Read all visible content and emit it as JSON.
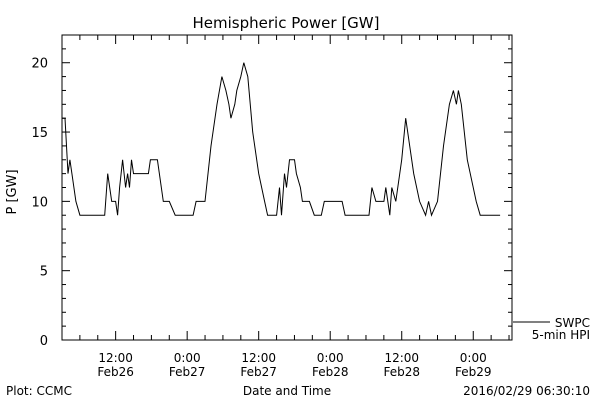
{
  "chart_data": {
    "type": "line",
    "title": "Hemispheric Power [GW]",
    "xlabel": "Date and Time",
    "ylabel": "P [GW]",
    "ylim": [
      0,
      22
    ],
    "yticks": [
      0,
      5,
      10,
      15,
      20
    ],
    "xlim": [
      "2016-02-26 03:00",
      "2016-02-29 06:30"
    ],
    "xticks": [
      {
        "t": "2016-02-26 12:00",
        "line1": "12:00",
        "line2": "Feb26"
      },
      {
        "t": "2016-02-27 00:00",
        "line1": "0:00",
        "line2": "Feb27"
      },
      {
        "t": "2016-02-27 12:00",
        "line1": "12:00",
        "line2": "Feb27"
      },
      {
        "t": "2016-02-28 00:00",
        "line1": "0:00",
        "line2": "Feb28"
      },
      {
        "t": "2016-02-28 12:00",
        "line1": "12:00",
        "line2": "Feb28"
      },
      {
        "t": "2016-02-29 00:00",
        "line1": "0:00",
        "line2": "Feb29"
      }
    ],
    "grid": false,
    "legend_position": "bottom-right",
    "legend": [
      "SWPC",
      "5-min HPI"
    ],
    "series": [
      {
        "name": "SWPC",
        "color": "#000000",
        "points": [
          [
            "2016-02-26 03:00",
            16
          ],
          [
            "2016-02-26 03:30",
            16
          ],
          [
            "2016-02-26 04:00",
            12
          ],
          [
            "2016-02-26 04:20",
            13
          ],
          [
            "2016-02-26 04:40",
            12
          ],
          [
            "2016-02-26 05:20",
            10
          ],
          [
            "2016-02-26 06:00",
            9
          ],
          [
            "2016-02-26 08:30",
            9
          ],
          [
            "2016-02-26 10:10",
            9
          ],
          [
            "2016-02-26 10:40",
            12
          ],
          [
            "2016-02-26 11:00",
            11
          ],
          [
            "2016-02-26 11:20",
            10
          ],
          [
            "2016-02-26 12:00",
            10
          ],
          [
            "2016-02-26 12:20",
            9
          ],
          [
            "2016-02-26 12:40",
            11
          ],
          [
            "2016-02-26 13:10",
            13
          ],
          [
            "2016-02-26 13:40",
            11
          ],
          [
            "2016-02-26 14:00",
            12
          ],
          [
            "2016-02-26 14:20",
            11
          ],
          [
            "2016-02-26 14:40",
            13
          ],
          [
            "2016-02-26 15:00",
            12
          ],
          [
            "2016-02-26 17:30",
            12
          ],
          [
            "2016-02-26 17:50",
            13
          ],
          [
            "2016-02-26 19:00",
            13
          ],
          [
            "2016-02-26 20:00",
            10
          ],
          [
            "2016-02-26 21:00",
            10
          ],
          [
            "2016-02-26 22:00",
            9
          ],
          [
            "2016-02-27 01:00",
            9
          ],
          [
            "2016-02-27 01:30",
            10
          ],
          [
            "2016-02-27 03:00",
            10
          ],
          [
            "2016-02-27 04:00",
            14
          ],
          [
            "2016-02-27 05:00",
            17
          ],
          [
            "2016-02-27 05:50",
            19
          ],
          [
            "2016-02-27 06:30",
            18
          ],
          [
            "2016-02-27 07:00",
            17
          ],
          [
            "2016-02-27 07:20",
            16
          ],
          [
            "2016-02-27 08:00",
            17
          ],
          [
            "2016-02-27 08:20",
            18
          ],
          [
            "2016-02-27 09:00",
            19
          ],
          [
            "2016-02-27 09:30",
            20
          ],
          [
            "2016-02-27 10:10",
            19
          ],
          [
            "2016-02-27 11:00",
            15
          ],
          [
            "2016-02-27 12:00",
            12
          ],
          [
            "2016-02-27 13:00",
            10
          ],
          [
            "2016-02-27 13:30",
            9
          ],
          [
            "2016-02-27 15:00",
            9
          ],
          [
            "2016-02-27 15:30",
            11
          ],
          [
            "2016-02-27 15:50",
            9
          ],
          [
            "2016-02-27 16:20",
            12
          ],
          [
            "2016-02-27 16:40",
            11
          ],
          [
            "2016-02-27 17:10",
            13
          ],
          [
            "2016-02-27 18:00",
            13
          ],
          [
            "2016-02-27 18:20",
            12
          ],
          [
            "2016-02-27 19:00",
            11
          ],
          [
            "2016-02-27 19:20",
            10
          ],
          [
            "2016-02-27 20:30",
            10
          ],
          [
            "2016-02-27 21:20",
            9
          ],
          [
            "2016-02-27 22:30",
            9
          ],
          [
            "2016-02-27 23:00",
            10
          ],
          [
            "2016-02-28 02:00",
            10
          ],
          [
            "2016-02-28 02:30",
            9
          ],
          [
            "2016-02-28 06:30",
            9
          ],
          [
            "2016-02-28 07:00",
            11
          ],
          [
            "2016-02-28 07:40",
            10
          ],
          [
            "2016-02-28 09:00",
            10
          ],
          [
            "2016-02-28 09:20",
            11
          ],
          [
            "2016-02-28 10:00",
            9
          ],
          [
            "2016-02-28 10:20",
            11
          ],
          [
            "2016-02-28 11:00",
            10
          ],
          [
            "2016-02-28 12:00",
            13
          ],
          [
            "2016-02-28 12:40",
            16
          ],
          [
            "2016-02-28 13:20",
            14
          ],
          [
            "2016-02-28 14:00",
            12
          ],
          [
            "2016-02-28 15:00",
            10
          ],
          [
            "2016-02-28 16:00",
            9
          ],
          [
            "2016-02-28 16:30",
            10
          ],
          [
            "2016-02-28 17:00",
            9
          ],
          [
            "2016-02-28 18:00",
            10
          ],
          [
            "2016-02-28 19:00",
            14
          ],
          [
            "2016-02-28 20:00",
            17
          ],
          [
            "2016-02-28 20:40",
            18
          ],
          [
            "2016-02-28 21:10",
            17
          ],
          [
            "2016-02-28 21:30",
            18
          ],
          [
            "2016-02-28 22:00",
            17
          ],
          [
            "2016-02-28 23:00",
            13
          ],
          [
            "2016-02-29 00:30",
            10
          ],
          [
            "2016-02-29 01:10",
            9
          ],
          [
            "2016-02-29 04:30",
            9
          ]
        ]
      }
    ]
  },
  "footer": {
    "left": "Plot: CCMC",
    "right": "2016/02/29 06:30:10"
  }
}
